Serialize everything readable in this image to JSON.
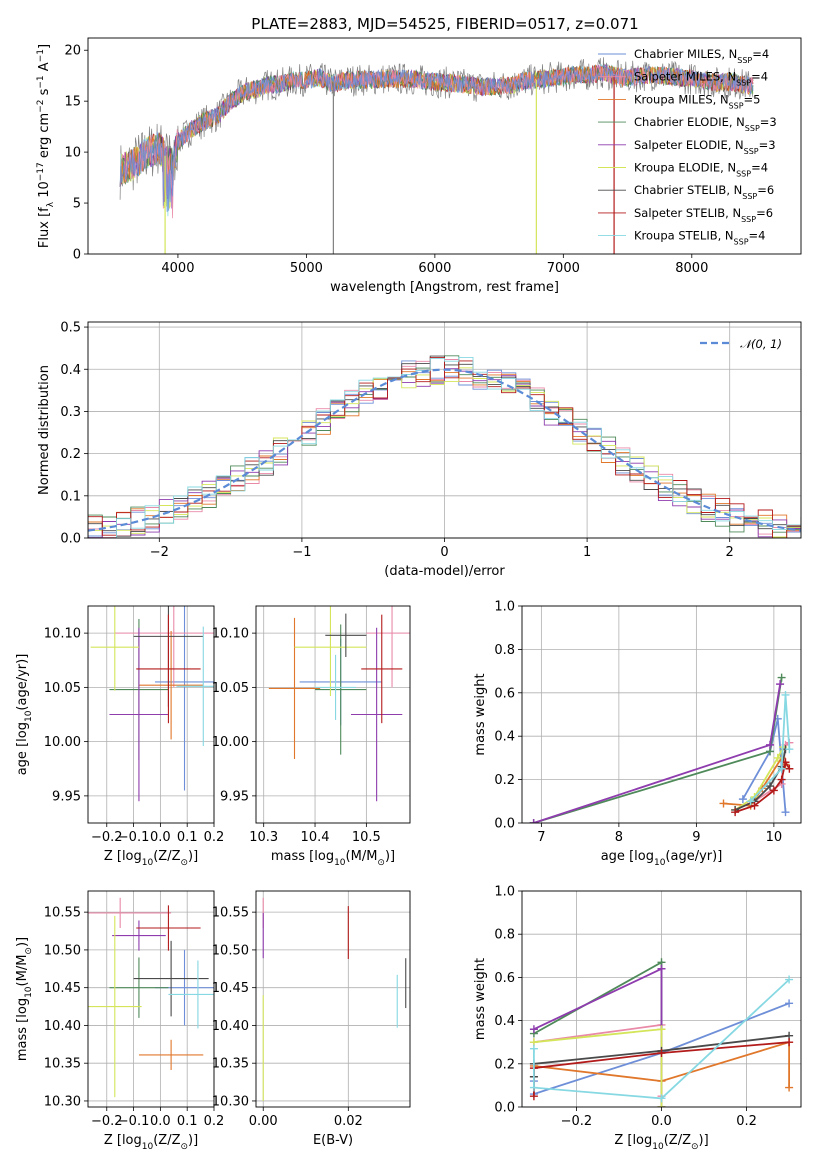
{
  "colors": {
    "chabrier_miles": "#6e8fd8",
    "salpeter_miles": "#e98aa8",
    "kroupa_miles": "#e0772b",
    "chabrier_elodie": "#4f8a5a",
    "salpeter_elodie": "#8e3cae",
    "kroupa_elodie": "#d4e55a",
    "chabrier_stelib": "#4a4a4a",
    "salpeter_stelib": "#b31b1b",
    "kroupa_stelib": "#86d8e2",
    "gaussian": "#5b8bd6",
    "data_spectrum": "#808080",
    "grid": "#b0b0b0"
  },
  "chart_data": [
    {
      "id": "spectrum",
      "type": "line",
      "title": "PLATE=2883, MJD=54525, FIBERID=0517, z=0.071",
      "xlabel": "wavelength [Angstrom, rest frame]",
      "ylabel": "Flux [f_λ 10^-17 erg cm^-2 s^-1 A^-1]",
      "xlim": [
        3300,
        8850
      ],
      "ylim": [
        0,
        21.2
      ],
      "xticks": [
        4000,
        5000,
        6000,
        7000,
        8000
      ],
      "yticks": [
        0,
        5,
        10,
        15,
        20
      ],
      "grid": false,
      "legend_position": "top-right",
      "legend": [
        {
          "key": "chabrier_miles",
          "label": "Chabrier MILES, N",
          "sub": "SSP",
          "suffix": "=4"
        },
        {
          "key": "salpeter_miles",
          "label": "Salpeter MILES, N",
          "sub": "SSP",
          "suffix": "=4"
        },
        {
          "key": "kroupa_miles",
          "label": "Kroupa MILES, N",
          "sub": "SSP",
          "suffix": "=5"
        },
        {
          "key": "chabrier_elodie",
          "label": "Chabrier ELODIE, N",
          "sub": "SSP",
          "suffix": "=3"
        },
        {
          "key": "salpeter_elodie",
          "label": "Salpeter ELODIE, N",
          "sub": "SSP",
          "suffix": "=3"
        },
        {
          "key": "kroupa_elodie",
          "label": "Kroupa ELODIE, N",
          "sub": "SSP",
          "suffix": "=4"
        },
        {
          "key": "chabrier_stelib",
          "label": "Chabrier STELIB, N",
          "sub": "SSP",
          "suffix": "=6"
        },
        {
          "key": "salpeter_stelib",
          "label": "Salpeter STELIB, N",
          "sub": "SSP",
          "suffix": "=6"
        },
        {
          "key": "kroupa_stelib",
          "label": "Kroupa STELIB, N",
          "sub": "SSP",
          "suffix": "=4"
        }
      ],
      "continuum": [
        [
          3550,
          8.2
        ],
        [
          3650,
          8.8
        ],
        [
          3750,
          9.8
        ],
        [
          3850,
          10.5
        ],
        [
          3920,
          9.3
        ],
        [
          3960,
          8.8
        ],
        [
          4000,
          11.0
        ],
        [
          4100,
          12.2
        ],
        [
          4200,
          13.0
        ],
        [
          4300,
          13.5
        ],
        [
          4400,
          14.8
        ],
        [
          4500,
          15.8
        ],
        [
          4600,
          16.2
        ],
        [
          4700,
          16.6
        ],
        [
          4800,
          16.7
        ],
        [
          4900,
          17.0
        ],
        [
          5000,
          17.1
        ],
        [
          5100,
          17.3
        ],
        [
          5200,
          16.7
        ],
        [
          5300,
          17.0
        ],
        [
          5400,
          17.1
        ],
        [
          5500,
          17.1
        ],
        [
          5600,
          17.2
        ],
        [
          5700,
          17.2
        ],
        [
          5800,
          17.2
        ],
        [
          5900,
          17.0
        ],
        [
          6000,
          16.9
        ],
        [
          6100,
          16.8
        ],
        [
          6200,
          16.7
        ],
        [
          6300,
          16.5
        ],
        [
          6400,
          16.4
        ],
        [
          6500,
          16.5
        ],
        [
          6600,
          16.6
        ],
        [
          6700,
          17.0
        ],
        [
          6800,
          17.1
        ],
        [
          6900,
          17.3
        ],
        [
          7000,
          17.4
        ],
        [
          7100,
          17.6
        ],
        [
          7200,
          17.6
        ],
        [
          7300,
          17.8
        ],
        [
          7400,
          17.5
        ],
        [
          7500,
          17.3
        ],
        [
          7600,
          17.5
        ],
        [
          7700,
          17.6
        ],
        [
          7800,
          17.5
        ],
        [
          7900,
          17.3
        ],
        [
          8000,
          17.2
        ],
        [
          8100,
          17.0
        ],
        [
          8200,
          16.8
        ],
        [
          8300,
          16.9
        ],
        [
          8400,
          16.6
        ],
        [
          8480,
          16.5
        ]
      ],
      "spikes": [
        {
          "x": 3900,
          "y_low": 0,
          "key": "kroupa_elodie"
        },
        {
          "x": 5210,
          "y_low": 0,
          "key": "data_spectrum"
        },
        {
          "x": 6790,
          "y_low": 0,
          "key": "kroupa_elodie"
        },
        {
          "x": 7395,
          "y_low": 0,
          "key": "salpeter_stelib"
        }
      ]
    },
    {
      "id": "residual_hist",
      "type": "histogram",
      "xlabel": "(data-model)/error",
      "ylabel": "Normed distribution",
      "xlim": [
        -2.5,
        2.5
      ],
      "ylim": [
        0,
        0.512
      ],
      "xticks": [
        -2,
        -1,
        0,
        1,
        2
      ],
      "yticks": [
        0.0,
        0.1,
        0.2,
        0.3,
        0.4,
        0.5
      ],
      "grid": true,
      "legend_position": "top-right",
      "legend": [
        {
          "key": "gaussian",
          "label": "𝒩(0, 1)",
          "style": "dashed"
        }
      ],
      "bin_width": 0.1,
      "reference_curve": {
        "name": "𝒩(0, 1)",
        "mu": 0,
        "sigma": 1
      }
    },
    {
      "id": "age_vs_Z",
      "type": "errorbar",
      "xlabel": "Z [log10(Z/Z☉)]",
      "ylabel": "age [log10(age/yr)]",
      "xlim": [
        -0.27,
        0.2
      ],
      "ylim": [
        9.925,
        10.125
      ],
      "xticks": [
        -0.2,
        -0.1,
        0.0,
        0.1,
        0.2
      ],
      "yticks": [
        9.95,
        10.0,
        10.05,
        10.1
      ],
      "grid": true,
      "points": [
        {
          "key": "chabrier_miles",
          "x": 0.09,
          "xerr": 0.11,
          "y": 10.055,
          "yerr": 0.1
        },
        {
          "key": "salpeter_miles",
          "x": 0.05,
          "xerr": 0.22,
          "y": 10.1,
          "yerr": 0.05
        },
        {
          "key": "kroupa_miles",
          "x": 0.04,
          "xerr": 0.12,
          "y": 10.052,
          "yerr": 0.05
        },
        {
          "key": "chabrier_elodie",
          "x": -0.08,
          "xerr": 0.11,
          "y": 10.048,
          "yerr": 0.065
        },
        {
          "key": "salpeter_elodie",
          "x": -0.08,
          "xerr": 0.11,
          "y": 10.025,
          "yerr": 0.08
        },
        {
          "key": "kroupa_elodie",
          "x": -0.17,
          "xerr": 0.09,
          "y": 10.087,
          "yerr": 0.04
        },
        {
          "key": "chabrier_stelib",
          "x": 0.03,
          "xerr": 0.13,
          "y": 10.097,
          "yerr": 0.065
        },
        {
          "key": "salpeter_stelib",
          "x": 0.03,
          "xerr": 0.12,
          "y": 10.067,
          "yerr": 0.05
        },
        {
          "key": "kroupa_stelib",
          "x": 0.16,
          "xerr": 0.1,
          "y": 10.051,
          "yerr": 0.055
        }
      ]
    },
    {
      "id": "age_vs_mass",
      "type": "errorbar",
      "xlabel": "mass [log10(M/M☉)]",
      "ylabel": "",
      "xlim": [
        10.285,
        10.585
      ],
      "ylim": [
        9.925,
        10.125
      ],
      "xticks": [
        10.3,
        10.4,
        10.5
      ],
      "yticks": [
        9.95,
        10.0,
        10.05,
        10.1
      ],
      "grid": true,
      "points": [
        {
          "key": "chabrier_miles",
          "x": 10.45,
          "xerr": 0.08,
          "y": 10.055,
          "yerr": 0.04
        },
        {
          "key": "salpeter_miles",
          "x": 10.55,
          "xerr": 0.05,
          "y": 10.1,
          "yerr": 0.05
        },
        {
          "key": "kroupa_miles",
          "x": 10.36,
          "xerr": 0.05,
          "y": 10.049,
          "yerr": 0.065
        },
        {
          "key": "chabrier_elodie",
          "x": 10.45,
          "xerr": 0.05,
          "y": 10.048,
          "yerr": 0.06
        },
        {
          "key": "salpeter_elodie",
          "x": 10.52,
          "xerr": 0.05,
          "y": 10.025,
          "yerr": 0.08
        },
        {
          "key": "kroupa_elodie",
          "x": 10.43,
          "xerr": 0.07,
          "y": 10.087,
          "yerr": 0.045
        },
        {
          "key": "chabrier_stelib",
          "x": 10.46,
          "xerr": 0.04,
          "y": 10.098,
          "yerr": 0.02
        },
        {
          "key": "salpeter_stelib",
          "x": 10.53,
          "xerr": 0.04,
          "y": 10.067,
          "yerr": 0.05
        },
        {
          "key": "kroupa_stelib",
          "x": 10.44,
          "xerr": 0.04,
          "y": 10.05,
          "yerr": 0.03
        }
      ]
    },
    {
      "id": "mass_weight_vs_age",
      "type": "line",
      "xlabel": "age [log10(age/yr)]",
      "ylabel": "mass weight",
      "xlim": [
        6.75,
        10.35
      ],
      "ylim": [
        0,
        1.0
      ],
      "xticks": [
        7,
        8,
        9,
        10
      ],
      "yticks": [
        0.0,
        0.2,
        0.4,
        0.6,
        0.8,
        1.0
      ],
      "grid": true,
      "series": [
        {
          "key": "chabrier_miles",
          "x": [
            9.6,
            9.95,
            10.05,
            10.15
          ],
          "y": [
            0.11,
            0.33,
            0.48,
            0.05
          ]
        },
        {
          "key": "salpeter_miles",
          "x": [
            9.7,
            10.1,
            10.15,
            10.2
          ],
          "y": [
            0.09,
            0.18,
            0.36,
            0.37
          ]
        },
        {
          "key": "kroupa_miles",
          "x": [
            9.35,
            9.7,
            9.85,
            10.1,
            10.15
          ],
          "y": [
            0.09,
            0.08,
            0.16,
            0.3,
            0.27
          ]
        },
        {
          "key": "chabrier_elodie",
          "x": [
            6.9,
            9.95,
            10.1
          ],
          "y": [
            0.0,
            0.33,
            0.67
          ]
        },
        {
          "key": "salpeter_elodie",
          "x": [
            6.9,
            9.95,
            10.08
          ],
          "y": [
            0.0,
            0.36,
            0.64
          ]
        },
        {
          "key": "kroupa_elodie",
          "x": [
            9.5,
            9.75,
            10.05,
            10.12
          ],
          "y": [
            0.06,
            0.12,
            0.3,
            0.35
          ]
        },
        {
          "key": "chabrier_stelib",
          "x": [
            9.5,
            9.75,
            9.95,
            10.1,
            10.15
          ],
          "y": [
            0.06,
            0.1,
            0.17,
            0.26,
            0.34
          ]
        },
        {
          "key": "salpeter_stelib",
          "x": [
            9.5,
            9.75,
            10.0,
            10.1,
            10.15,
            10.2
          ],
          "y": [
            0.05,
            0.08,
            0.15,
            0.2,
            0.28,
            0.25
          ]
        },
        {
          "key": "kroupa_stelib",
          "x": [
            9.7,
            10.1,
            10.15,
            10.2
          ],
          "y": [
            0.1,
            0.25,
            0.59,
            0.34
          ]
        }
      ]
    },
    {
      "id": "mass_vs_Z",
      "type": "errorbar",
      "xlabel": "Z [log10(Z/Z☉)]",
      "ylabel": "mass [log10(M/M☉)]",
      "xlim": [
        -0.27,
        0.2
      ],
      "ylim": [
        10.292,
        10.578
      ],
      "xticks": [
        -0.2,
        -0.1,
        0.0,
        0.1,
        0.2
      ],
      "yticks": [
        10.3,
        10.35,
        10.4,
        10.45,
        10.5,
        10.55
      ],
      "grid": true,
      "points": [
        {
          "key": "chabrier_miles",
          "x": 0.09,
          "xerr": 0.11,
          "y": 10.45,
          "yerr": 0.05
        },
        {
          "key": "salpeter_miles",
          "x": -0.15,
          "xerr": 0.19,
          "y": 10.549,
          "yerr": 0.02
        },
        {
          "key": "kroupa_miles",
          "x": 0.04,
          "xerr": 0.12,
          "y": 10.361,
          "yerr": 0.02
        },
        {
          "key": "chabrier_elodie",
          "x": -0.08,
          "xerr": 0.11,
          "y": 10.45,
          "yerr": 0.04
        },
        {
          "key": "salpeter_elodie",
          "x": -0.08,
          "xerr": 0.1,
          "y": 10.519,
          "yerr": 0.02
        },
        {
          "key": "kroupa_elodie",
          "x": -0.17,
          "xerr": 0.1,
          "y": 10.425,
          "yerr": 0.12
        },
        {
          "key": "chabrier_stelib",
          "x": 0.04,
          "xerr": 0.14,
          "y": 10.462,
          "yerr": 0.05
        },
        {
          "key": "salpeter_stelib",
          "x": 0.03,
          "xerr": 0.12,
          "y": 10.529,
          "yerr": 0.03
        },
        {
          "key": "kroupa_stelib",
          "x": 0.14,
          "xerr": 0.11,
          "y": 10.441,
          "yerr": 0.045
        }
      ]
    },
    {
      "id": "mass_vs_ebv",
      "type": "errorbar",
      "xlabel": "E(B-V)",
      "ylabel": "",
      "xlim": [
        -0.0017,
        0.0345
      ],
      "ylim": [
        10.292,
        10.578
      ],
      "xticks": [
        0.0,
        0.02
      ],
      "yticks": [
        10.3,
        10.35,
        10.4,
        10.45,
        10.5,
        10.55
      ],
      "grid": true,
      "points": [
        {
          "key": "salpeter_miles",
          "x": 0.0,
          "y": 10.549,
          "yerr": 0.02
        },
        {
          "key": "salpeter_elodie",
          "x": 0.0,
          "y": 10.519,
          "yerr": 0.03
        },
        {
          "key": "kroupa_elodie",
          "x": 0.0,
          "y": 10.37,
          "yerr": 0.07
        },
        {
          "key": "salpeter_stelib",
          "x": 0.02,
          "y": 10.523,
          "yerr": 0.035
        },
        {
          "key": "kroupa_stelib",
          "x": 0.0315,
          "y": 10.432,
          "yerr": 0.035
        },
        {
          "key": "chabrier_stelib",
          "x": 0.0335,
          "y": 10.456,
          "yerr": 0.033
        }
      ]
    },
    {
      "id": "mass_weight_vs_Z",
      "type": "line",
      "xlabel": "Z [log10(Z/Z☉)]",
      "ylabel": "mass weight",
      "xlim": [
        -0.328,
        0.328
      ],
      "ylim": [
        0,
        1.0
      ],
      "xticks": [
        -0.2,
        0.0,
        0.2
      ],
      "yticks": [
        0.0,
        0.2,
        0.4,
        0.6,
        0.8,
        1.0
      ],
      "grid": true,
      "series": [
        {
          "key": "chabrier_miles",
          "x": [
            -0.3,
            -0.3,
            0.0,
            0.3
          ],
          "y": [
            0.12,
            0.06,
            0.25,
            0.48
          ]
        },
        {
          "key": "salpeter_miles",
          "x": [
            -0.3,
            0.0,
            0.0
          ],
          "y": [
            0.3,
            0.38,
            0.05
          ]
        },
        {
          "key": "kroupa_miles",
          "x": [
            -0.3,
            -0.3,
            0.0,
            0.3,
            0.3
          ],
          "y": [
            0.14,
            0.19,
            0.12,
            0.3,
            0.09
          ]
        },
        {
          "key": "chabrier_elodie",
          "x": [
            -0.3,
            0.0,
            0.0
          ],
          "y": [
            0.34,
            0.67,
            0.0
          ]
        },
        {
          "key": "salpeter_elodie",
          "x": [
            -0.3,
            0.0,
            0.0
          ],
          "y": [
            0.36,
            0.64,
            0.0
          ]
        },
        {
          "key": "kroupa_elodie",
          "x": [
            -0.3,
            0.0,
            0.0
          ],
          "y": [
            0.3,
            0.36,
            0.0
          ]
        },
        {
          "key": "chabrier_stelib",
          "x": [
            -0.3,
            -0.3,
            0.0,
            0.3
          ],
          "y": [
            0.14,
            0.2,
            0.26,
            0.33
          ]
        },
        {
          "key": "salpeter_stelib",
          "x": [
            -0.3,
            -0.3,
            0.0,
            0.3
          ],
          "y": [
            0.05,
            0.18,
            0.25,
            0.3
          ]
        },
        {
          "key": "kroupa_stelib",
          "x": [
            -0.3,
            -0.3,
            0.0,
            0.3
          ],
          "y": [
            0.27,
            0.09,
            0.04,
            0.59
          ]
        }
      ]
    }
  ]
}
